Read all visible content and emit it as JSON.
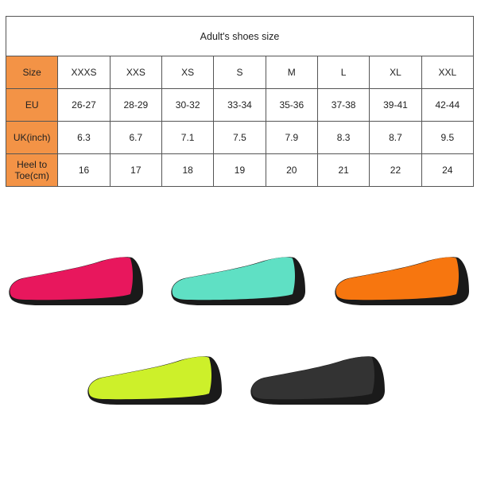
{
  "table": {
    "title": "Adult's shoes size",
    "header_color": "#f39346",
    "rows": [
      {
        "label": "Size",
        "values": [
          "XXXS",
          "XXS",
          "XS",
          "S",
          "M",
          "L",
          "XL",
          "XXL"
        ]
      },
      {
        "label": "EU",
        "values": [
          "26-27",
          "28-29",
          "30-32",
          "33-34",
          "35-36",
          "37-38",
          "39-41",
          "42-44"
        ]
      },
      {
        "label": "UK(inch)",
        "values": [
          "6.3",
          "6.7",
          "7.1",
          "7.5",
          "7.9",
          "8.3",
          "8.7",
          "9.5"
        ]
      },
      {
        "label": "Heel to Toe(cm)",
        "values": [
          "16",
          "17",
          "18",
          "19",
          "20",
          "21",
          "22",
          "24"
        ]
      }
    ]
  },
  "products": [
    {
      "color_name": "rose-red",
      "color": "#e8175d"
    },
    {
      "color_name": "mint",
      "color": "#5fe0c4"
    },
    {
      "color_name": "orange",
      "color": "#f7760f"
    },
    {
      "color_name": "lime",
      "color": "#cdf02a"
    },
    {
      "color_name": "black",
      "color": "#333333"
    }
  ]
}
